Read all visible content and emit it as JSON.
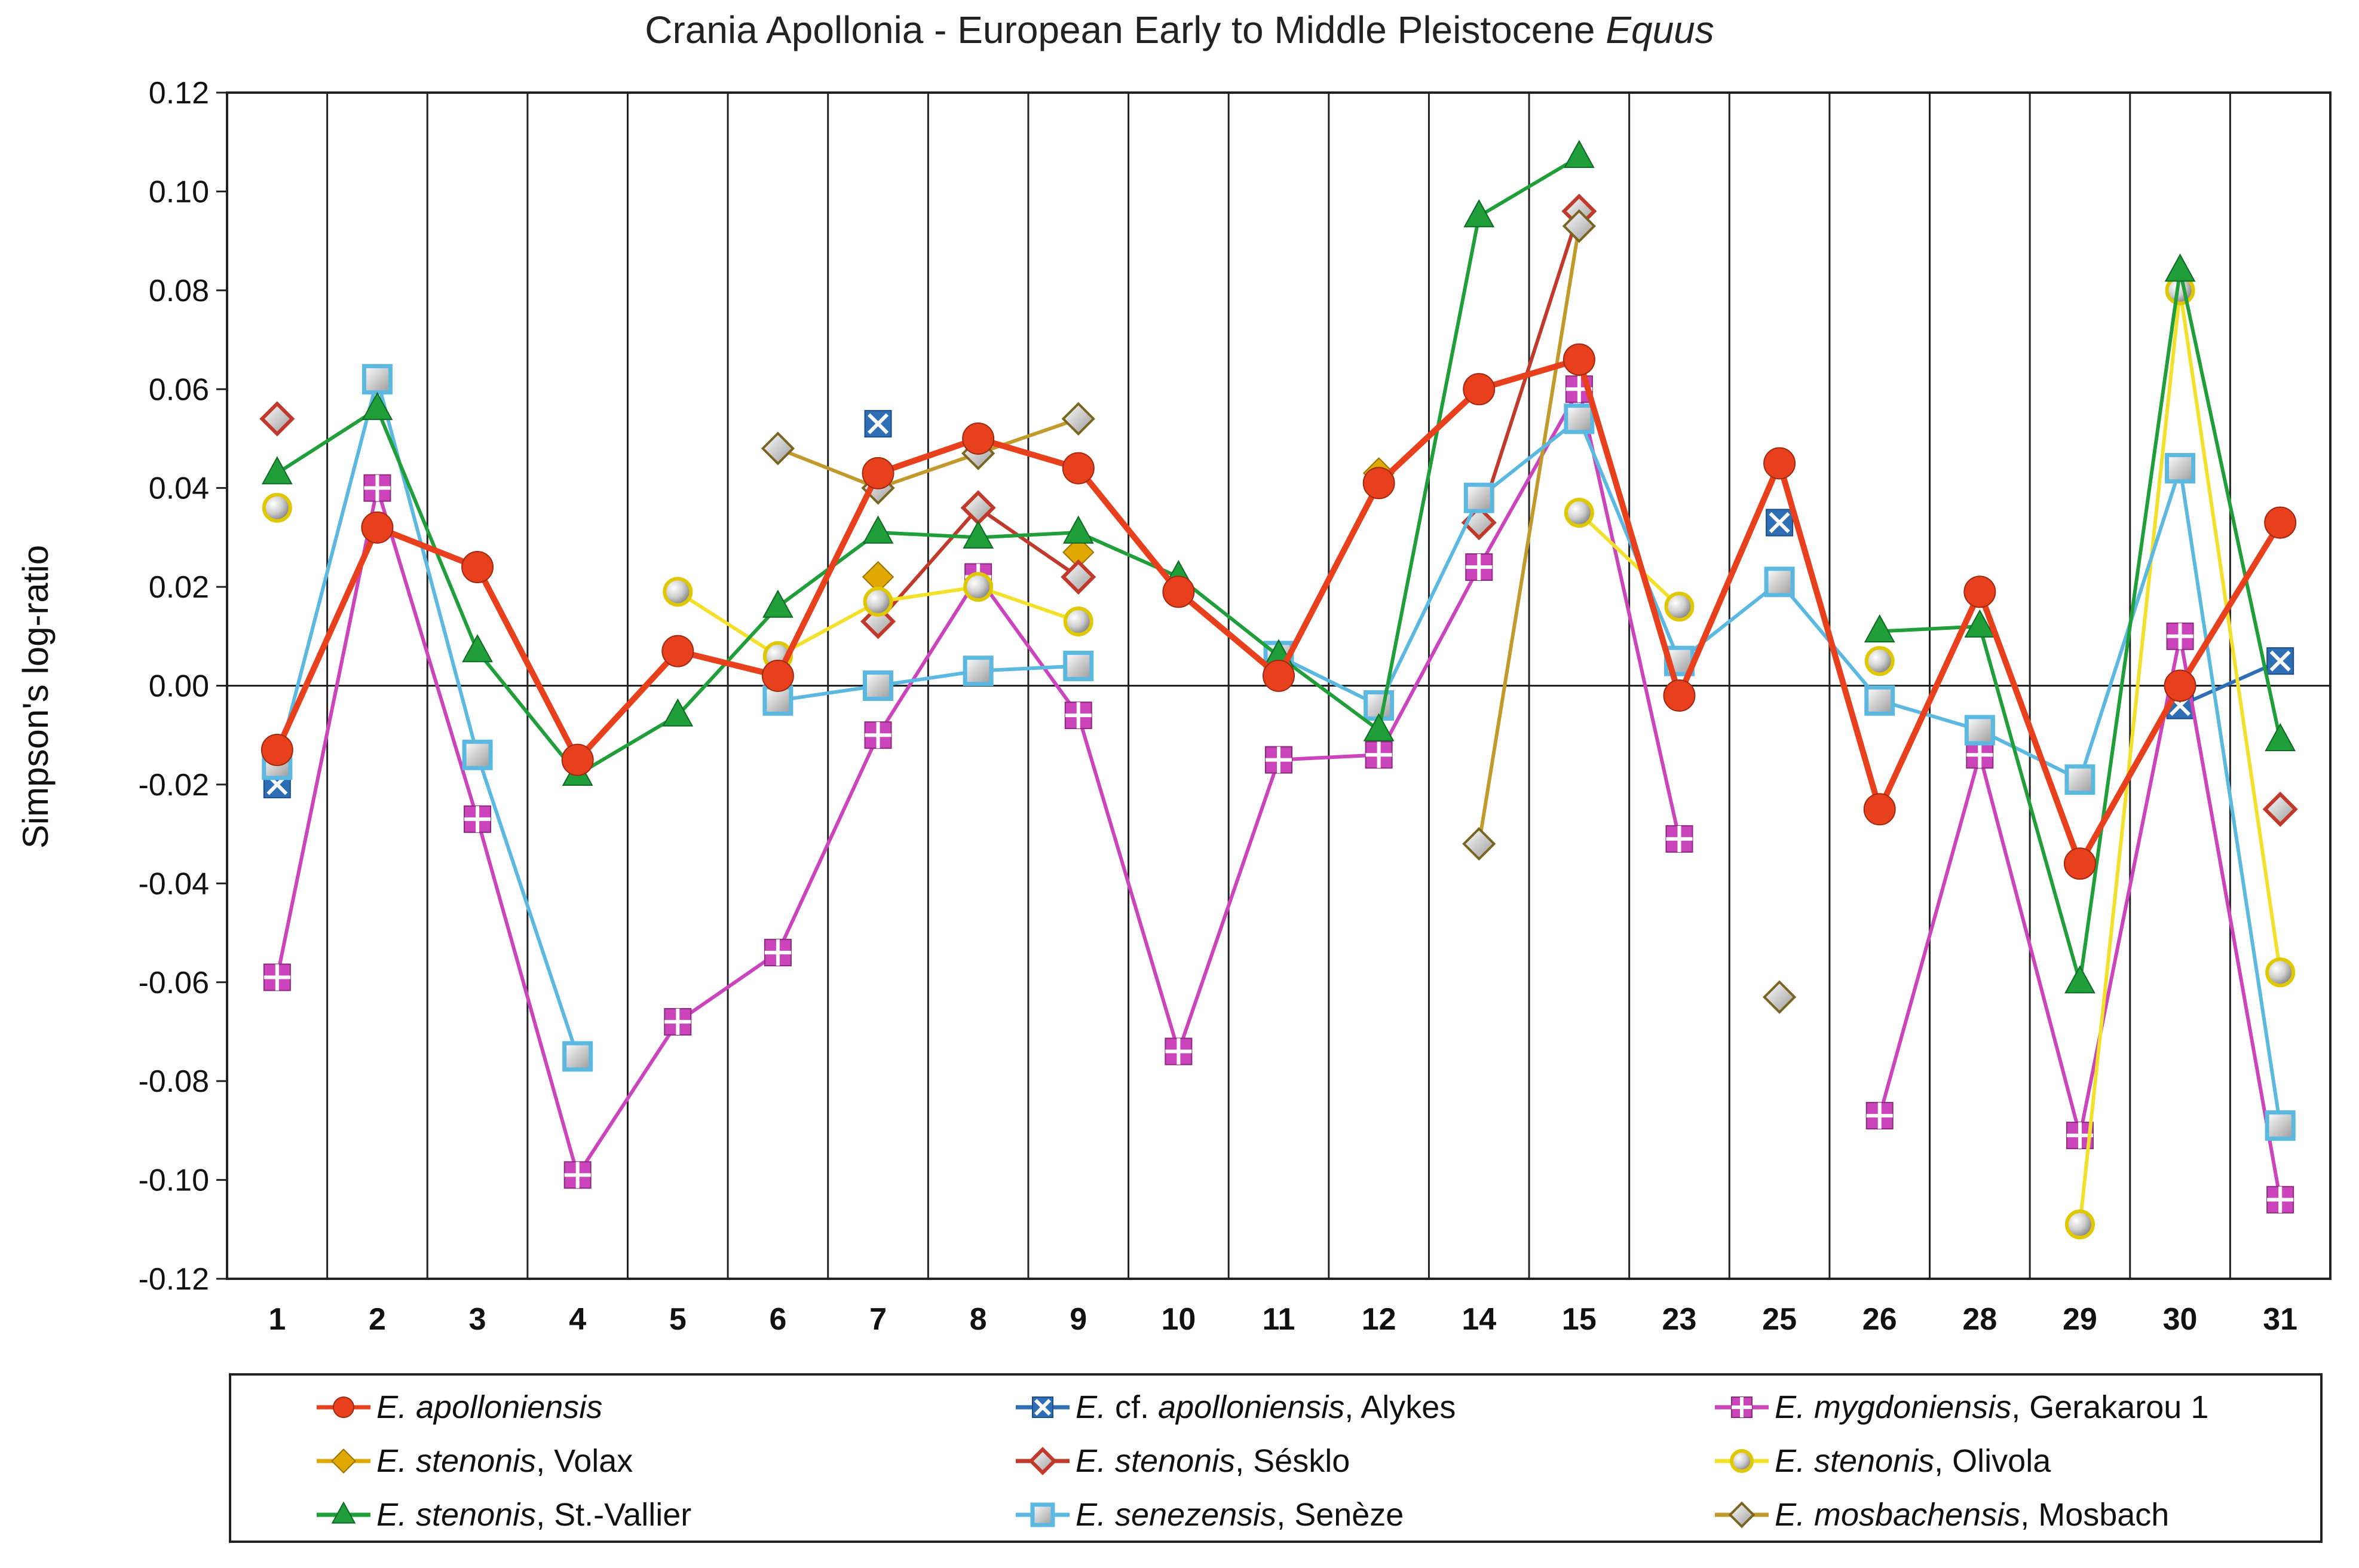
{
  "chart_data": {
    "type": "line",
    "title": "Crania Apollonia - European Early to Middle Pleistocene",
    "title_italic": "Equus",
    "xlabel": "",
    "ylabel": "Simpson's log-ratio",
    "ylim": [
      -0.12,
      0.12
    ],
    "yticks": [
      "0.12",
      "0.10",
      "0.08",
      "0.06",
      "0.04",
      "0.02",
      "0.00",
      "-0.02",
      "-0.04",
      "-0.06",
      "-0.08",
      "-0.10",
      "-0.12"
    ],
    "categories": [
      "1",
      "2",
      "3",
      "4",
      "5",
      "6",
      "7",
      "8",
      "9",
      "10",
      "11",
      "12",
      "14",
      "15",
      "23",
      "25",
      "26",
      "28",
      "29",
      "30",
      "31"
    ],
    "grid": "vertical",
    "legend_position": "bottom",
    "series": [
      {
        "name_italic": "E. apolloniensis",
        "name_rest": "",
        "color": "#e8401c",
        "marker": "circle",
        "values": [
          -0.013,
          0.032,
          0.024,
          -0.015,
          0.007,
          0.002,
          0.043,
          0.05,
          0.044,
          0.019,
          0.002,
          0.041,
          0.06,
          0.066,
          -0.002,
          0.045,
          -0.025,
          0.019,
          -0.036,
          0.0,
          0.033
        ]
      },
      {
        "name_italic": "E.",
        "name_mid": " cf. ",
        "name_italic2": "apolloniensis",
        "name_rest": ", Alykes",
        "color": "#2e6eb5",
        "marker": "x-square",
        "values": [
          -0.02,
          null,
          null,
          null,
          null,
          null,
          0.053,
          null,
          null,
          null,
          null,
          null,
          null,
          null,
          null,
          0.033,
          null,
          null,
          null,
          -0.004,
          0.005
        ]
      },
      {
        "name_italic": "E. mygdoniensis",
        "name_rest": ", Gerakarou 1",
        "color": "#cc44bb",
        "marker": "cross-square",
        "values": [
          -0.059,
          0.04,
          -0.027,
          -0.099,
          -0.068,
          -0.054,
          -0.01,
          0.022,
          -0.006,
          -0.074,
          -0.015,
          -0.014,
          0.024,
          0.06,
          -0.031,
          null,
          -0.087,
          -0.014,
          -0.091,
          0.01,
          -0.104
        ]
      },
      {
        "name_italic": "E. stenonis",
        "name_rest": ", Volax",
        "color": "#e0a800",
        "marker": "diamond",
        "values": [
          null,
          null,
          null,
          null,
          null,
          null,
          0.022,
          null,
          0.027,
          null,
          null,
          0.043,
          null,
          null,
          null,
          null,
          null,
          null,
          null,
          null,
          null
        ]
      },
      {
        "name_italic": "E. stenonis",
        "name_rest": ", Sésklo",
        "color": "#c0392b",
        "marker": "diamond-white",
        "values": [
          0.054,
          null,
          null,
          null,
          null,
          null,
          0.013,
          0.036,
          0.022,
          null,
          null,
          null,
          0.033,
          0.096,
          null,
          null,
          null,
          null,
          null,
          null,
          -0.025
        ]
      },
      {
        "name_italic": "E. stenonis",
        "name_rest": ", Olivola",
        "color": "#f2e02a",
        "marker": "sphere",
        "values": [
          0.036,
          null,
          null,
          null,
          0.019,
          0.006,
          0.017,
          0.02,
          0.013,
          null,
          null,
          null,
          null,
          0.035,
          0.016,
          null,
          0.005,
          null,
          -0.109,
          0.08,
          -0.058
        ]
      },
      {
        "name_italic": "E. stenonis",
        "name_rest": ", St.-Vallier",
        "color": "#1f9e3a",
        "marker": "triangle",
        "values": [
          0.043,
          0.056,
          0.007,
          -0.018,
          -0.006,
          0.016,
          0.031,
          0.03,
          0.031,
          0.022,
          0.006,
          -0.009,
          0.095,
          0.107,
          null,
          null,
          0.011,
          0.012,
          -0.06,
          0.084,
          -0.011
        ]
      },
      {
        "name_italic": "E. senezensis",
        "name_rest": ", Senèze",
        "color": "#5bb8e0",
        "marker": "square",
        "values": [
          -0.016,
          0.062,
          -0.014,
          -0.075,
          null,
          -0.003,
          0.0,
          0.003,
          0.004,
          null,
          0.006,
          -0.004,
          0.038,
          0.054,
          0.005,
          0.021,
          -0.003,
          -0.009,
          -0.019,
          0.044,
          -0.089
        ]
      },
      {
        "name_italic": "E. mosbachensis",
        "name_rest": ", Mosbach",
        "color": "#c09a2a",
        "marker": "diamond-gray",
        "values": [
          null,
          null,
          null,
          null,
          null,
          0.048,
          0.04,
          0.047,
          0.054,
          null,
          null,
          null,
          -0.032,
          0.093,
          null,
          -0.063,
          null,
          null,
          null,
          null,
          null
        ]
      }
    ]
  }
}
